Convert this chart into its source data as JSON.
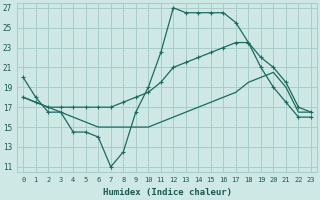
{
  "background_color": "#cde8e5",
  "grid_color": "#a8ceca",
  "line_color": "#1a6b60",
  "xlabel": "Humidex (Indice chaleur)",
  "xlim": [
    -0.5,
    23.5
  ],
  "ylim": [
    10.5,
    27.5
  ],
  "yticks": [
    11,
    13,
    15,
    17,
    19,
    21,
    23,
    25,
    27
  ],
  "xticks": [
    0,
    1,
    2,
    3,
    4,
    5,
    6,
    7,
    8,
    9,
    10,
    11,
    12,
    13,
    14,
    15,
    16,
    17,
    18,
    19,
    20,
    21,
    22,
    23
  ],
  "curve1_x": [
    0,
    1,
    2,
    3,
    4,
    5,
    6,
    7,
    8,
    9,
    10,
    11,
    12,
    13,
    14,
    15,
    16,
    17,
    18,
    19,
    20,
    21,
    22,
    23
  ],
  "curve1_y": [
    20.0,
    18.0,
    16.5,
    16.5,
    14.5,
    14.5,
    14.0,
    11.0,
    12.5,
    16.5,
    19.0,
    22.5,
    27.0,
    26.5,
    26.5,
    26.5,
    26.5,
    25.5,
    23.5,
    21.0,
    19.0,
    17.5,
    16.0,
    16.0
  ],
  "curve2_x": [
    0,
    1,
    2,
    3,
    4,
    5,
    6,
    7,
    8,
    9,
    10,
    11,
    12,
    13,
    14,
    15,
    16,
    17,
    18,
    19,
    20,
    21,
    22,
    23
  ],
  "curve2_y": [
    18.0,
    17.5,
    17.0,
    17.0,
    17.0,
    17.0,
    17.0,
    17.0,
    17.5,
    18.0,
    18.5,
    19.5,
    21.0,
    21.5,
    22.0,
    22.5,
    23.0,
    23.5,
    23.5,
    22.0,
    21.0,
    19.5,
    17.0,
    16.5
  ],
  "curve3_x": [
    0,
    1,
    2,
    3,
    4,
    5,
    6,
    7,
    8,
    9,
    10,
    11,
    12,
    13,
    14,
    15,
    16,
    17,
    18,
    19,
    20,
    21,
    22,
    23
  ],
  "curve3_y": [
    18.0,
    17.5,
    17.0,
    16.5,
    16.0,
    15.5,
    15.0,
    15.0,
    15.0,
    15.0,
    15.0,
    15.5,
    16.0,
    16.5,
    17.0,
    17.5,
    18.0,
    18.5,
    19.5,
    20.0,
    20.5,
    19.0,
    16.5,
    16.5
  ]
}
